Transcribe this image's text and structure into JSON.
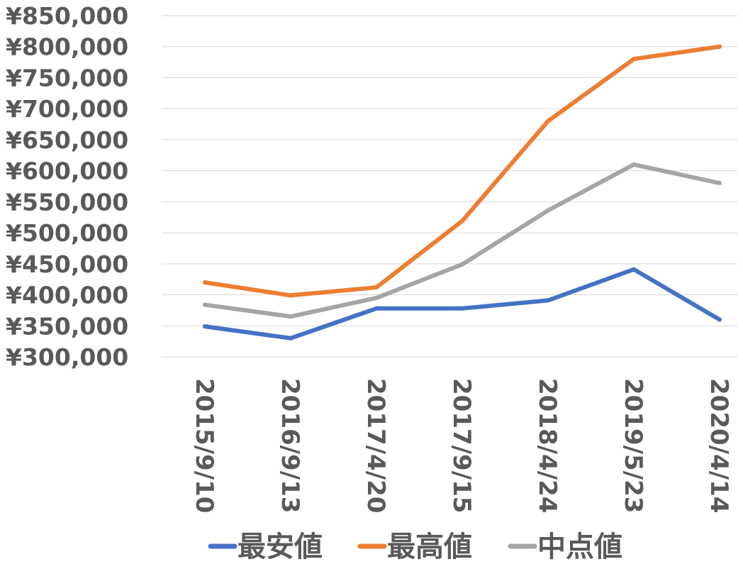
{
  "chart_data": {
    "type": "line",
    "categories": [
      "2015/9/10",
      "2016/9/13",
      "2017/4/20",
      "2017/9/15",
      "2018/4/24",
      "2019/5/23",
      "2020/4/14"
    ],
    "series": [
      {
        "name": "最安値",
        "color": "#4472C4",
        "values": [
          349000,
          330000,
          378000,
          378000,
          391000,
          441000,
          360000
        ]
      },
      {
        "name": "最高値",
        "color": "#ED7D31",
        "values": [
          420000,
          399000,
          412000,
          519000,
          680000,
          780000,
          800000
        ]
      },
      {
        "name": "中点値",
        "color": "#A5A5A5",
        "values": [
          384000,
          365000,
          395000,
          449000,
          536000,
          610000,
          580000
        ]
      }
    ],
    "ylim": [
      300000,
      850000
    ],
    "ytick_step": 50000,
    "ytick_labels": [
      "¥300,000",
      "¥350,000",
      "¥400,000",
      "¥450,000",
      "¥500,000",
      "¥550,000",
      "¥600,000",
      "¥650,000",
      "¥700,000",
      "¥750,000",
      "¥800,000",
      "¥850,000"
    ],
    "title": "",
    "xlabel": "",
    "ylabel": "",
    "grid": true,
    "legend_position": "bottom"
  }
}
